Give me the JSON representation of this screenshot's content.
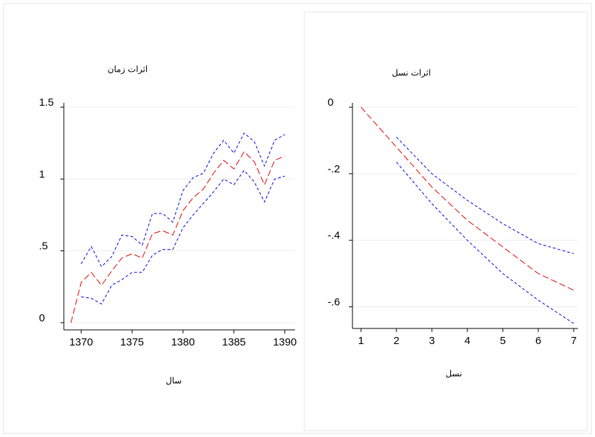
{
  "chart_data": [
    {
      "type": "line",
      "title": "اثرات زمان",
      "x_label": "سال",
      "x": [
        1369,
        1370,
        1371,
        1372,
        1373,
        1374,
        1375,
        1376,
        1377,
        1378,
        1379,
        1380,
        1381,
        1382,
        1383,
        1384,
        1385,
        1386,
        1387,
        1388,
        1389,
        1390
      ],
      "xlim": [
        1368.3,
        1391
      ],
      "xticks": [
        1370,
        1375,
        1380,
        1385,
        1390
      ],
      "ylim": [
        -0.05,
        1.53
      ],
      "yticks": [
        0,
        {
          "value": 0.5,
          "label": ".5"
        },
        1,
        1.5
      ],
      "grid": true,
      "series": [
        {
          "color": "#e00000",
          "values": [
            0,
            0.28,
            0.35,
            0.26,
            0.36,
            0.45,
            0.48,
            0.45,
            0.62,
            0.64,
            0.61,
            0.78,
            0.87,
            0.93,
            1.04,
            1.13,
            1.07,
            1.19,
            1.12,
            0.96,
            1.13,
            1.16
          ]
        },
        {
          "color": "#0000e0",
          "values": [
            null,
            0.41,
            0.53,
            0.39,
            0.46,
            0.61,
            0.6,
            0.54,
            0.76,
            0.76,
            0.7,
            0.92,
            1.01,
            1.04,
            1.18,
            1.27,
            1.18,
            1.32,
            1.26,
            1.09,
            1.27,
            1.31
          ]
        },
        {
          "color": "#0000e0",
          "values": [
            null,
            0.18,
            0.17,
            0.13,
            0.26,
            0.3,
            0.35,
            0.35,
            0.47,
            0.51,
            0.51,
            0.66,
            0.75,
            0.83,
            0.91,
            1.0,
            0.96,
            1.06,
            0.98,
            0.84,
            1.0,
            1.02
          ]
        }
      ]
    },
    {
      "type": "line",
      "title": "اثرات نسل",
      "x_label": "نسل",
      "x": [
        1,
        2,
        3,
        4,
        5,
        6,
        7
      ],
      "xlim": [
        0.76,
        7.12
      ],
      "xticks": [
        1,
        2,
        3,
        4,
        5,
        6,
        7
      ],
      "ylim": [
        -0.665,
        0.013
      ],
      "yticks": [
        0,
        {
          "value": -0.2,
          "label": "-.2"
        },
        {
          "value": -0.4,
          "label": "-.4"
        },
        {
          "value": -0.6,
          "label": "-.6"
        }
      ],
      "grid": true,
      "series": [
        {
          "color": "#e00000",
          "values": [
            0,
            -0.12,
            -0.24,
            -0.34,
            -0.42,
            -0.5,
            -0.55
          ]
        },
        {
          "color": "#0000e0",
          "values": [
            null,
            -0.09,
            -0.2,
            -0.28,
            -0.35,
            -0.41,
            -0.44
          ]
        },
        {
          "color": "#0000e0",
          "values": [
            null,
            -0.165,
            -0.29,
            -0.4,
            -0.5,
            -0.58,
            -0.65
          ]
        }
      ]
    }
  ]
}
